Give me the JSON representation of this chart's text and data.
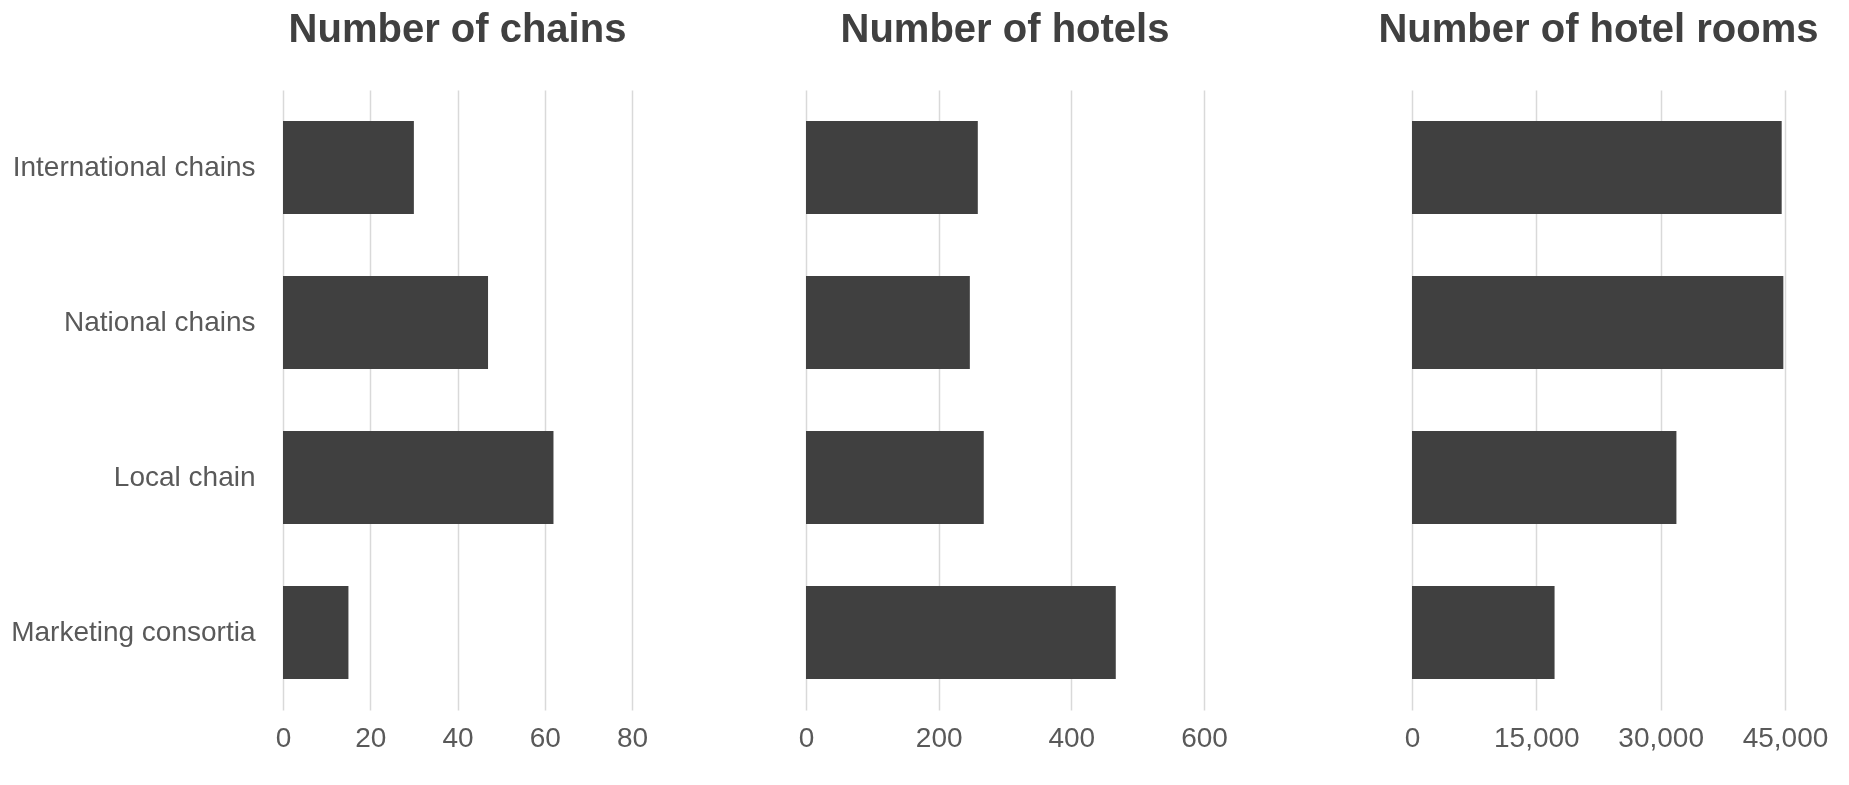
{
  "chart_data": [
    {
      "type": "bar",
      "orientation": "horizontal",
      "title": "Number of chains",
      "categories": [
        "International chains",
        "National chains",
        "Local chain",
        "Marketing consortia"
      ],
      "values": [
        30,
        47,
        62,
        15
      ],
      "color": "#404040",
      "xlim": [
        0,
        80
      ],
      "xticks": [
        0,
        20,
        40,
        60,
        80
      ],
      "grid": "x"
    },
    {
      "type": "bar",
      "orientation": "horizontal",
      "title": "Number of hotels",
      "categories": [
        "International chains",
        "National chains",
        "Local chain",
        "Marketing consortia"
      ],
      "values": [
        259,
        247,
        268,
        467
      ],
      "color": "#404040",
      "xlim": [
        0,
        600
      ],
      "xticks": [
        0,
        200,
        400,
        600
      ],
      "grid": "x",
      "tick_labels": "x"
    },
    {
      "type": "bar",
      "orientation": "horizontal",
      "title": "Number of hotel rooms",
      "categories": [
        "International chains",
        "National chains",
        "Local chain",
        "Marketing consortia"
      ],
      "values": [
        44600,
        44800,
        31900,
        17200
      ],
      "color": "#404040",
      "xlim": [
        0,
        45000
      ],
      "xticks": [
        0,
        {
          "value": 15000,
          "label": "15,000"
        },
        {
          "value": 30000,
          "label": "30,000"
        },
        {
          "value": 45000,
          "label": "45,000"
        }
      ],
      "grid": "x",
      "tick_labels": "x"
    }
  ]
}
